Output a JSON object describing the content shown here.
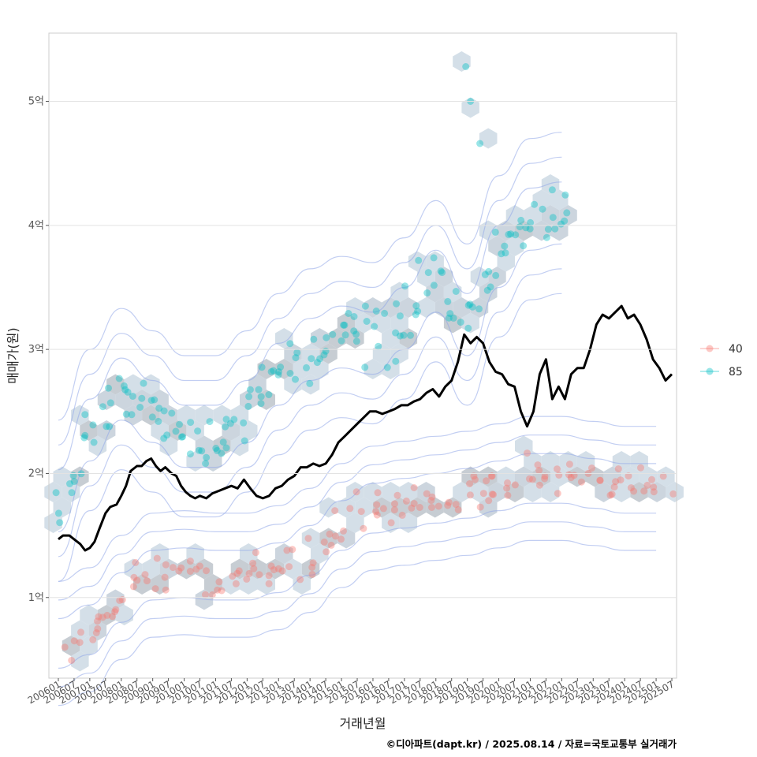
{
  "chart_data": {
    "type": "scatter",
    "xlabel": "거래년월",
    "ylabel": "매매가(원)",
    "caption": "©디아파트(dapt.kr) / 2025.08.14 / 자료=국토교통부 실거래가",
    "x_tick_labels": [
      "200601",
      "200607",
      "200701",
      "200707",
      "200801",
      "200807",
      "200901",
      "200907",
      "201001",
      "201007",
      "201101",
      "201107",
      "201201",
      "201207",
      "201301",
      "201307",
      "201401",
      "201407",
      "201501",
      "201507",
      "201601",
      "201607",
      "201701",
      "201707",
      "201801",
      "201807",
      "201901",
      "201907",
      "202001",
      "202007",
      "202101",
      "202107",
      "202201",
      "202207",
      "202301",
      "202307",
      "202401",
      "202407",
      "202501",
      "202507"
    ],
    "y_ticks": [
      {
        "value": 1,
        "label": "1억"
      },
      {
        "value": 2,
        "label": "2억"
      },
      {
        "value": 3,
        "label": "3억"
      },
      {
        "value": 4,
        "label": "4억"
      },
      {
        "value": 5,
        "label": "5억"
      }
    ],
    "ylim": [
      0.35,
      5.55
    ],
    "xlim": [
      -0.6,
      39.3
    ],
    "grid": true,
    "legend": {
      "position": "right",
      "entries": [
        {
          "label": "40",
          "color": "#f8766d"
        },
        {
          "label": "85",
          "color": "#00bfc4"
        }
      ]
    },
    "series": [
      {
        "name": "40",
        "color": "#f8766d",
        "trend": [
          [
            0,
            0.63
          ],
          [
            1,
            0.66
          ],
          [
            2,
            0.74
          ],
          [
            3,
            0.86
          ],
          [
            4,
            1.0
          ],
          [
            5,
            1.12
          ],
          [
            6,
            1.18
          ],
          [
            7,
            1.2
          ],
          [
            8,
            1.2
          ],
          [
            9,
            1.19
          ],
          [
            10,
            1.18
          ],
          [
            11,
            1.18
          ],
          [
            12,
            1.18
          ],
          [
            13,
            1.2
          ],
          [
            14,
            1.24
          ],
          [
            15,
            1.3
          ],
          [
            16,
            1.38
          ],
          [
            17,
            1.48
          ],
          [
            18,
            1.58
          ],
          [
            19,
            1.66
          ],
          [
            20,
            1.72
          ],
          [
            21,
            1.74
          ],
          [
            22,
            1.76
          ],
          [
            23,
            1.78
          ],
          [
            24,
            1.8
          ],
          [
            25,
            1.82
          ],
          [
            26,
            1.84
          ],
          [
            27,
            1.86
          ],
          [
            28,
            1.9
          ],
          [
            29,
            1.94
          ],
          [
            30,
            1.96
          ],
          [
            31,
            1.97
          ],
          [
            32,
            1.96
          ],
          [
            33,
            1.94
          ],
          [
            34,
            1.92
          ],
          [
            35,
            1.9
          ],
          [
            36,
            1.88
          ],
          [
            37,
            1.87
          ],
          [
            38,
            1.88
          ],
          [
            39,
            1.9
          ]
        ],
        "spread": 0.14,
        "points_per_step": 4
      },
      {
        "name": "85",
        "color": "#00bfc4",
        "trend": [
          [
            0,
            1.78
          ],
          [
            1,
            2.05
          ],
          [
            2,
            2.35
          ],
          [
            3,
            2.6
          ],
          [
            4,
            2.68
          ],
          [
            5,
            2.6
          ],
          [
            6,
            2.5
          ],
          [
            7,
            2.4
          ],
          [
            8,
            2.3
          ],
          [
            9,
            2.28
          ],
          [
            10,
            2.3
          ],
          [
            11,
            2.38
          ],
          [
            12,
            2.5
          ],
          [
            13,
            2.65
          ],
          [
            14,
            2.8
          ],
          [
            15,
            2.9
          ],
          [
            16,
            3.0
          ],
          [
            17,
            3.08
          ],
          [
            18,
            3.1
          ],
          [
            19,
            3.08
          ],
          [
            20,
            3.05
          ],
          [
            21,
            3.1
          ],
          [
            22,
            3.25
          ],
          [
            23,
            3.45
          ],
          [
            24,
            3.55
          ],
          [
            25,
            3.3
          ],
          [
            26,
            3.2
          ],
          [
            27,
            3.5
          ],
          [
            28,
            3.75
          ],
          [
            29,
            3.95
          ],
          [
            30,
            4.05
          ],
          [
            31,
            4.1
          ],
          [
            32,
            4.1
          ]
        ],
        "spread": 0.2,
        "points_per_step": 5,
        "outliers": [
          [
            25.9,
            5.28
          ],
          [
            26.2,
            5.0
          ],
          [
            26.8,
            4.66
          ]
        ]
      }
    ],
    "median_line": {
      "color": "#000000",
      "points": [
        [
          0,
          1.47
        ],
        [
          0.3,
          1.5
        ],
        [
          0.7,
          1.5
        ],
        [
          1.0,
          1.47
        ],
        [
          1.4,
          1.43
        ],
        [
          1.7,
          1.38
        ],
        [
          2.0,
          1.4
        ],
        [
          2.3,
          1.45
        ],
        [
          2.6,
          1.55
        ],
        [
          3.0,
          1.68
        ],
        [
          3.3,
          1.73
        ],
        [
          3.7,
          1.75
        ],
        [
          4.0,
          1.82
        ],
        [
          4.3,
          1.9
        ],
        [
          4.6,
          2.02
        ],
        [
          5.0,
          2.06
        ],
        [
          5.3,
          2.06
        ],
        [
          5.6,
          2.1
        ],
        [
          5.9,
          2.12
        ],
        [
          6.2,
          2.06
        ],
        [
          6.5,
          2.02
        ],
        [
          6.8,
          2.05
        ],
        [
          7.2,
          2.0
        ],
        [
          7.5,
          1.98
        ],
        [
          7.8,
          1.9
        ],
        [
          8.1,
          1.85
        ],
        [
          8.4,
          1.82
        ],
        [
          8.7,
          1.8
        ],
        [
          9.0,
          1.82
        ],
        [
          9.4,
          1.8
        ],
        [
          9.8,
          1.84
        ],
        [
          10.2,
          1.86
        ],
        [
          10.6,
          1.88
        ],
        [
          11.0,
          1.9
        ],
        [
          11.4,
          1.88
        ],
        [
          11.8,
          1.95
        ],
        [
          12.2,
          1.88
        ],
        [
          12.6,
          1.82
        ],
        [
          13.0,
          1.8
        ],
        [
          13.4,
          1.82
        ],
        [
          13.8,
          1.88
        ],
        [
          14.2,
          1.9
        ],
        [
          14.6,
          1.95
        ],
        [
          15.0,
          1.98
        ],
        [
          15.4,
          2.05
        ],
        [
          15.8,
          2.05
        ],
        [
          16.2,
          2.08
        ],
        [
          16.6,
          2.06
        ],
        [
          17.0,
          2.08
        ],
        [
          17.4,
          2.15
        ],
        [
          17.8,
          2.25
        ],
        [
          18.2,
          2.3
        ],
        [
          18.6,
          2.35
        ],
        [
          19.0,
          2.4
        ],
        [
          19.4,
          2.45
        ],
        [
          19.8,
          2.5
        ],
        [
          20.2,
          2.5
        ],
        [
          20.6,
          2.48
        ],
        [
          21.0,
          2.5
        ],
        [
          21.4,
          2.52
        ],
        [
          21.8,
          2.55
        ],
        [
          22.2,
          2.55
        ],
        [
          22.6,
          2.58
        ],
        [
          23.0,
          2.6
        ],
        [
          23.4,
          2.65
        ],
        [
          23.8,
          2.68
        ],
        [
          24.2,
          2.62
        ],
        [
          24.6,
          2.7
        ],
        [
          25.0,
          2.75
        ],
        [
          25.4,
          2.9
        ],
        [
          25.8,
          3.12
        ],
        [
          26.2,
          3.05
        ],
        [
          26.6,
          3.1
        ],
        [
          27.0,
          3.05
        ],
        [
          27.4,
          2.9
        ],
        [
          27.8,
          2.82
        ],
        [
          28.2,
          2.8
        ],
        [
          28.6,
          2.72
        ],
        [
          29.0,
          2.7
        ],
        [
          29.4,
          2.5
        ],
        [
          29.8,
          2.38
        ],
        [
          30.2,
          2.5
        ],
        [
          30.6,
          2.8
        ],
        [
          31.0,
          2.92
        ],
        [
          31.4,
          2.6
        ],
        [
          31.8,
          2.7
        ],
        [
          32.2,
          2.6
        ],
        [
          32.6,
          2.8
        ],
        [
          33.0,
          2.85
        ],
        [
          33.4,
          2.85
        ],
        [
          33.8,
          3.0
        ],
        [
          34.2,
          3.2
        ],
        [
          34.6,
          3.28
        ],
        [
          35.0,
          3.25
        ],
        [
          35.4,
          3.3
        ],
        [
          35.8,
          3.35
        ],
        [
          36.2,
          3.25
        ],
        [
          36.6,
          3.28
        ],
        [
          37.0,
          3.2
        ],
        [
          37.4,
          3.08
        ],
        [
          37.8,
          2.92
        ],
        [
          38.2,
          2.85
        ],
        [
          38.6,
          2.75
        ],
        [
          39.0,
          2.8
        ]
      ]
    }
  }
}
